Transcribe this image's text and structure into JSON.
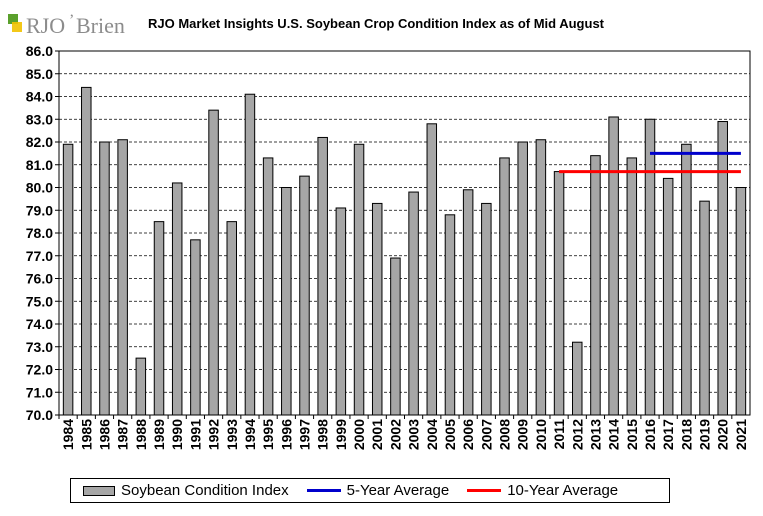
{
  "logo": {
    "brand_text": "RJO",
    "brand_text_2": "Brien",
    "colors": {
      "green": "#5aa02c",
      "yellow": "#f2c200",
      "gray": "#8c8c8c"
    }
  },
  "chart_data": {
    "type": "bar",
    "title": "RJO Market Insights U.S. Soybean Crop Condition Index as of Mid August",
    "xlabel": "",
    "ylabel": "",
    "ylim": [
      70.0,
      86.0
    ],
    "y_ticks": [
      "70.0",
      "71.0",
      "72.0",
      "73.0",
      "74.0",
      "75.0",
      "76.0",
      "77.0",
      "78.0",
      "79.0",
      "80.0",
      "81.0",
      "82.0",
      "83.0",
      "84.0",
      "85.0",
      "86.0"
    ],
    "categories": [
      "1984",
      "1985",
      "1986",
      "1987",
      "1988",
      "1989",
      "1990",
      "1991",
      "1992",
      "1993",
      "1994",
      "1995",
      "1996",
      "1997",
      "1998",
      "1999",
      "2000",
      "2001",
      "2002",
      "2003",
      "2004",
      "2005",
      "2006",
      "2007",
      "2008",
      "2009",
      "2010",
      "2011",
      "2012",
      "2013",
      "2014",
      "2015",
      "2016",
      "2017",
      "2018",
      "2019",
      "2020",
      "2021"
    ],
    "series": [
      {
        "name": "Soybean Condition Index",
        "color": "#a6a6a6",
        "values": [
          81.9,
          84.4,
          82.0,
          82.1,
          72.5,
          78.5,
          80.2,
          77.7,
          83.4,
          78.5,
          84.1,
          81.3,
          80.0,
          80.5,
          82.2,
          79.1,
          81.9,
          79.3,
          76.9,
          79.8,
          82.8,
          78.8,
          79.9,
          79.3,
          81.3,
          82.0,
          82.1,
          80.7,
          73.2,
          81.4,
          83.1,
          81.3,
          83.0,
          80.4,
          81.9,
          79.4,
          82.9,
          80.0
        ]
      }
    ],
    "averages": [
      {
        "name": "5-Year Average",
        "color": "#0000cc",
        "value": 81.5,
        "from": "2016",
        "to": "2021"
      },
      {
        "name": "10-Year Average",
        "color": "#ff0000",
        "value": 80.7,
        "from": "2011",
        "to": "2021"
      }
    ],
    "grid": true,
    "legend_position": "bottom"
  },
  "legend": {
    "items": [
      "Soybean Condition Index",
      "5-Year Average",
      "10-Year Average"
    ]
  }
}
